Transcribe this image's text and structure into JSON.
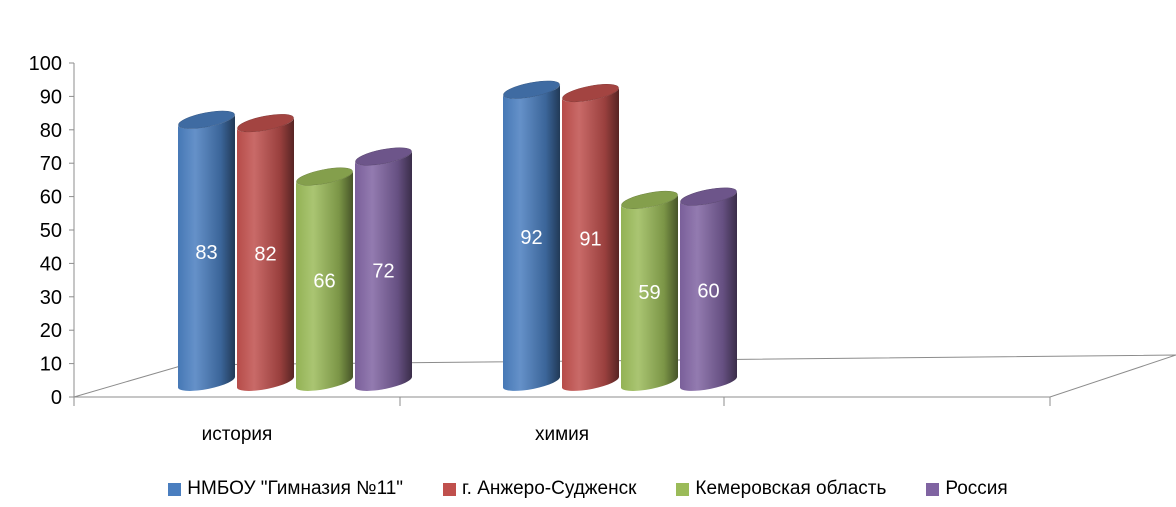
{
  "chart_data": {
    "type": "bar",
    "categories": [
      "история",
      "химия"
    ],
    "series": [
      {
        "name": "НМБОУ \"Гимназия №11\"",
        "values": [
          83,
          92
        ],
        "color": "#4a7ebf"
      },
      {
        "name": "г. Анжеро-Судженск",
        "values": [
          82,
          91
        ],
        "color": "#c0504d"
      },
      {
        "name": "Кемеровская область",
        "values": [
          66,
          59
        ],
        "color": "#9bbb59"
      },
      {
        "name": "Россия",
        "values": [
          72,
          60
        ],
        "color": "#8064a2"
      }
    ],
    "ylim": [
      0,
      100
    ],
    "yticks": [
      0,
      10,
      20,
      30,
      40,
      50,
      60,
      70,
      80,
      90,
      100
    ],
    "data_labels": true,
    "legend_position": "bottom",
    "grid": false
  }
}
